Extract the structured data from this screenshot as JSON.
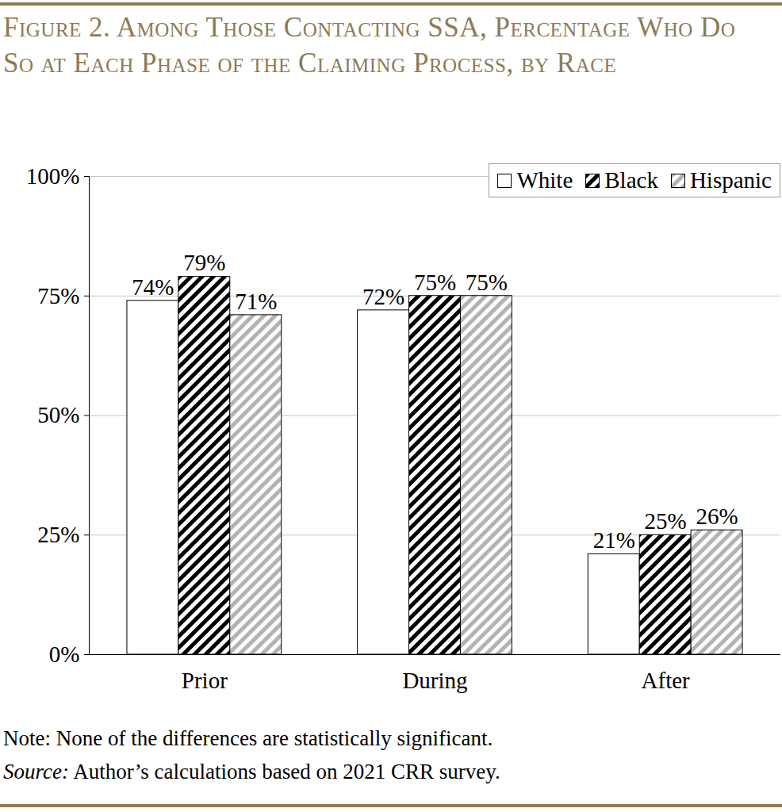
{
  "chart_data": {
    "type": "bar",
    "title": "Figure 2. Among Those Contacting SSA, Percentage Who Do So at Each Phase of the Claiming Process, by Race",
    "categories": [
      "Prior",
      "During",
      "After"
    ],
    "series": [
      {
        "name": "White",
        "color": "#ffffff",
        "values": [
          74,
          72,
          21
        ],
        "value_labels": [
          "74%",
          "72%",
          "21%"
        ]
      },
      {
        "name": "Black",
        "color": "#000000",
        "values": [
          79,
          75,
          25
        ],
        "value_labels": [
          "79%",
          "75%",
          "25%"
        ]
      },
      {
        "name": "Hispanic",
        "color": "#b3b3b3",
        "values": [
          71,
          75,
          26
        ],
        "value_labels": [
          "71%",
          "75%",
          "26%"
        ]
      }
    ],
    "ylim": [
      0,
      100
    ],
    "yticks": [
      {
        "value": 0,
        "label": "0%"
      },
      {
        "value": 25,
        "label": "25%"
      },
      {
        "value": 50,
        "label": "50%"
      },
      {
        "value": 75,
        "label": "75%"
      },
      {
        "value": 100,
        "label": "100%"
      }
    ],
    "grid": true,
    "data_labels": true,
    "legend": "upper right",
    "note": "Note: None of the differences are statistically significant.",
    "source": "Source: Author’s calculations based on 2021 CRR survey."
  }
}
